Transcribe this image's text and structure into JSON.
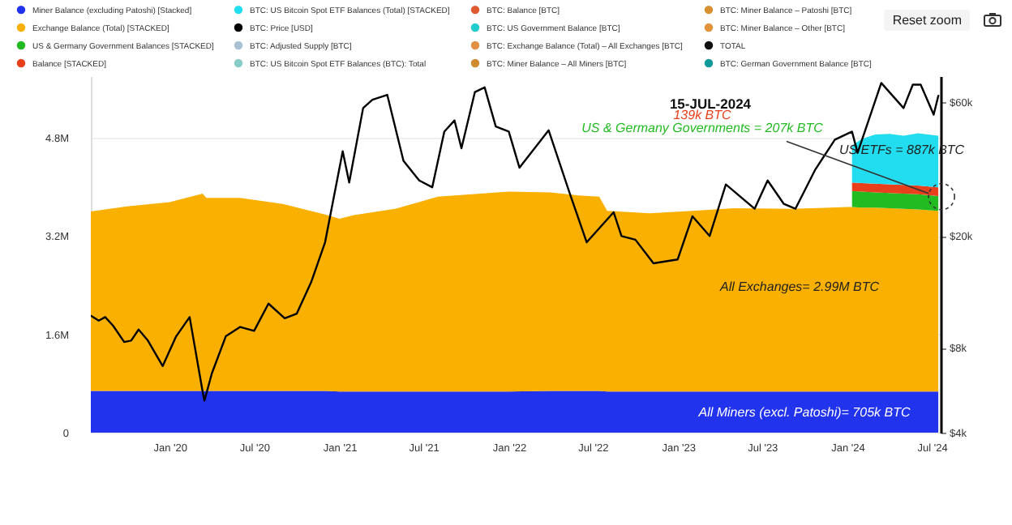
{
  "chart_data": {
    "type": "area",
    "stacked": true,
    "log": "y2",
    "grid": "y",
    "legend": "top",
    "x": [
      "2019-07-15",
      "2019-10-01",
      "2020-01-01",
      "2020-03-12",
      "2020-03-20",
      "2020-06-01",
      "2020-09-01",
      "2020-12-01",
      "2021-01-01",
      "2021-02-01",
      "2021-05-01",
      "2021-08-01",
      "2021-11-01",
      "2022-01-01",
      "2022-04-01",
      "2022-06-01",
      "2022-07-15",
      "2022-08-01",
      "2022-11-01",
      "2023-02-01",
      "2023-05-01",
      "2023-09-01",
      "2024-01-01",
      "2024-01-11",
      "2024-02-01",
      "2024-03-01",
      "2024-04-01",
      "2024-05-01",
      "2024-06-01",
      "2024-07-15"
    ],
    "xlim": [
      "2019-07-15",
      "2024-07-20"
    ],
    "xticks": [
      {
        "value": "2020-01",
        "label": "Jan '20"
      },
      {
        "value": "2020-07",
        "label": "Jul '20"
      },
      {
        "value": "2021-01",
        "label": "Jan '21"
      },
      {
        "value": "2021-07",
        "label": "Jul '21"
      },
      {
        "value": "2022-01",
        "label": "Jan '22"
      },
      {
        "value": "2022-07",
        "label": "Jul '22"
      },
      {
        "value": "2023-01",
        "label": "Jan '23"
      },
      {
        "value": "2023-07",
        "label": "Jul '23"
      },
      {
        "value": "2024-01",
        "label": "Jan '24"
      },
      {
        "value": "2024-07",
        "label": "Jul '24"
      }
    ],
    "ylim": [
      0,
      5800000
    ],
    "yticks": [
      0,
      {
        "value": 1600000,
        "label": "1.6M"
      },
      {
        "value": 3200000,
        "label": "3.2M"
      },
      {
        "value": 4800000,
        "label": "4.8M"
      }
    ],
    "y2lim": [
      4000,
      74000
    ],
    "y2ticks": [
      {
        "value": 4000,
        "label": "$4k"
      },
      {
        "value": 8000,
        "label": "$8k"
      },
      {
        "value": 20000,
        "label": "$20k"
      },
      {
        "value": 60000,
        "label": "$60k"
      }
    ],
    "series": [
      {
        "name": "Miner Balance (excluding Patoshi) [Stacked]",
        "color": "#2233ee",
        "type": "area",
        "values": [
          680000,
          680000,
          680000,
          680000,
          680000,
          680000,
          680000,
          680000,
          670000,
          670000,
          670000,
          670000,
          670000,
          670000,
          680000,
          680000,
          680000,
          670000,
          670000,
          670000,
          670000,
          670000,
          670000,
          670000,
          670000,
          670000,
          670000,
          670000,
          670000,
          670000
        ]
      },
      {
        "name": "Exchange Balance (Total) [STACKED]",
        "color": "#f9b000",
        "type": "area",
        "values": [
          2920000,
          3000000,
          3070000,
          3210000,
          3140000,
          3140000,
          3040000,
          2870000,
          2810000,
          2870000,
          2970000,
          3170000,
          3220000,
          3250000,
          3230000,
          3180000,
          3160000,
          2940000,
          2900000,
          2940000,
          2980000,
          2970000,
          3000000,
          3000000,
          2990000,
          2990000,
          2980000,
          2970000,
          2960000,
          2940000
        ]
      },
      {
        "name": "US & Germany Government Balances [STACKED]",
        "color": "#22bb22",
        "type": "area",
        "values": [
          null,
          null,
          null,
          null,
          null,
          null,
          null,
          null,
          null,
          null,
          null,
          null,
          null,
          null,
          null,
          null,
          null,
          null,
          null,
          null,
          null,
          null,
          null,
          260000,
          260000,
          250000,
          250000,
          250000,
          250000,
          240000
        ]
      },
      {
        "name": "Balance [STACKED]",
        "color": "#e8401c",
        "type": "area",
        "values": [
          null,
          null,
          null,
          null,
          null,
          null,
          null,
          null,
          null,
          null,
          null,
          null,
          null,
          null,
          null,
          null,
          null,
          null,
          null,
          null,
          null,
          null,
          null,
          140000,
          140000,
          140000,
          140000,
          140000,
          140000,
          140000
        ]
      },
      {
        "name": "BTC: US Bitcoin Spot ETF Balances (Total) [STACKED]",
        "color": "#22ddf0",
        "type": "area",
        "values": [
          null,
          null,
          null,
          null,
          null,
          null,
          null,
          null,
          null,
          null,
          null,
          null,
          null,
          null,
          null,
          null,
          null,
          null,
          null,
          null,
          null,
          null,
          null,
          600000,
          720000,
          800000,
          820000,
          800000,
          850000,
          840000
        ]
      },
      {
        "name": "BTC: Price [USD]",
        "color": "#000000",
        "type": "line",
        "axis": "y2",
        "x": [
          "2019-07-16",
          "2019-08-01",
          "2019-08-15",
          "2019-09-01",
          "2019-09-25",
          "2019-10-10",
          "2019-10-26",
          "2019-11-15",
          "2019-12-17",
          "2020-01-15",
          "2020-02-13",
          "2020-03-12",
          "2020-03-16",
          "2020-04-01",
          "2020-05-01",
          "2020-06-01",
          "2020-07-01",
          "2020-08-01",
          "2020-09-05",
          "2020-10-01",
          "2020-11-01",
          "2020-12-01",
          "2021-01-08",
          "2021-01-22",
          "2021-02-21",
          "2021-03-13",
          "2021-04-14",
          "2021-05-19",
          "2021-06-22",
          "2021-07-20",
          "2021-08-15",
          "2021-09-06",
          "2021-09-21",
          "2021-10-20",
          "2021-11-10",
          "2021-12-04",
          "2022-01-01",
          "2022-01-24",
          "2022-03-28",
          "2022-05-12",
          "2022-06-18",
          "2022-08-15",
          "2022-09-01",
          "2022-10-01",
          "2022-11-09",
          "2022-12-31",
          "2023-02-01",
          "2023-03-10",
          "2023-04-14",
          "2023-06-15",
          "2023-07-13",
          "2023-08-17",
          "2023-09-11",
          "2023-10-24",
          "2023-12-05",
          "2024-01-11",
          "2024-01-23",
          "2024-03-14",
          "2024-05-01",
          "2024-05-21",
          "2024-06-07",
          "2024-07-05",
          "2024-07-15"
        ],
        "values": [
          10400,
          10000,
          10300,
          9600,
          8400,
          8500,
          9300,
          8500,
          6900,
          8800,
          10300,
          5600,
          5200,
          6500,
          8800,
          9500,
          9200,
          11500,
          10200,
          10600,
          13700,
          19000,
          40000,
          31000,
          57000,
          61000,
          63500,
          37000,
          31500,
          29800,
          47000,
          51500,
          41000,
          65000,
          67500,
          49000,
          47000,
          35000,
          47500,
          28500,
          19000,
          24300,
          20000,
          19400,
          16000,
          16500,
          23500,
          20000,
          30500,
          25000,
          31500,
          26000,
          25000,
          34500,
          44000,
          47000,
          39500,
          70000,
          57000,
          69000,
          69000,
          54000,
          63000
        ]
      },
      {
        "name": "BTC: Adjusted Supply [BTC]",
        "color": "#a8c0d0",
        "values": [
          null,
          null,
          null,
          null,
          null,
          null,
          null,
          null,
          null,
          null,
          null,
          null,
          null,
          null,
          null,
          null,
          null,
          null,
          null,
          null,
          null,
          null,
          null,
          null,
          null,
          null,
          null,
          null,
          null,
          null
        ]
      },
      {
        "name": "BTC: US Bitcoin Spot ETF Balances (BTC): Total",
        "color": "#88ccc8",
        "values": [
          null,
          null,
          null,
          null,
          null,
          null,
          null,
          null,
          null,
          null,
          null,
          null,
          null,
          null,
          null,
          null,
          null,
          null,
          null,
          null,
          null,
          null,
          null,
          null,
          null,
          null,
          null,
          null,
          null,
          null
        ]
      },
      {
        "name": "BTC: Balance [BTC]",
        "color": "#e05a30",
        "values": [
          null,
          null,
          null,
          null,
          null,
          null,
          null,
          null,
          null,
          null,
          null,
          null,
          null,
          null,
          null,
          null,
          null,
          null,
          null,
          null,
          null,
          null,
          null,
          null,
          null,
          null,
          null,
          null,
          null,
          null
        ]
      },
      {
        "name": "BTC: US Government Balance [BTC]",
        "color": "#22cccc",
        "values": [
          null,
          null,
          null,
          null,
          null,
          null,
          null,
          null,
          null,
          null,
          null,
          null,
          null,
          null,
          null,
          null,
          null,
          null,
          null,
          null,
          null,
          null,
          null,
          null,
          null,
          null,
          null,
          null,
          null,
          null
        ]
      },
      {
        "name": "BTC: Exchange Balance (Total) – All Exchanges [BTC]",
        "color": "#e09040",
        "values": [
          null,
          null,
          null,
          null,
          null,
          null,
          null,
          null,
          null,
          null,
          null,
          null,
          null,
          null,
          null,
          null,
          null,
          null,
          null,
          null,
          null,
          null,
          null,
          null,
          null,
          null,
          null,
          null,
          null,
          null
        ]
      },
      {
        "name": "BTC: Miner Balance – All Miners [BTC]",
        "color": "#d08a30",
        "values": [
          null,
          null,
          null,
          null,
          null,
          null,
          null,
          null,
          null,
          null,
          null,
          null,
          null,
          null,
          null,
          null,
          null,
          null,
          null,
          null,
          null,
          null,
          null,
          null,
          null,
          null,
          null,
          null,
          null,
          null
        ]
      },
      {
        "name": "BTC: Miner Balance – Patoshi [BTC]",
        "color": "#d89030",
        "values": [
          null,
          null,
          null,
          null,
          null,
          null,
          null,
          null,
          null,
          null,
          null,
          null,
          null,
          null,
          null,
          null,
          null,
          null,
          null,
          null,
          null,
          null,
          null,
          null,
          null,
          null,
          null,
          null,
          null,
          null
        ]
      },
      {
        "name": "BTC: Miner Balance – Other [BTC]",
        "color": "#e0953a",
        "values": [
          null,
          null,
          null,
          null,
          null,
          null,
          null,
          null,
          null,
          null,
          null,
          null,
          null,
          null,
          null,
          null,
          null,
          null,
          null,
          null,
          null,
          null,
          null,
          null,
          null,
          null,
          null,
          null,
          null,
          null
        ]
      },
      {
        "name": "TOTAL",
        "color": "#111111",
        "values": [
          null,
          null,
          null,
          null,
          null,
          null,
          null,
          null,
          null,
          null,
          null,
          null,
          null,
          null,
          null,
          null,
          null,
          null,
          null,
          null,
          null,
          null,
          null,
          null,
          null,
          null,
          null,
          null,
          null,
          null
        ]
      },
      {
        "name": "BTC: German Government Balance [BTC]",
        "color": "#119999",
        "values": [
          null,
          null,
          null,
          null,
          null,
          null,
          null,
          null,
          null,
          null,
          null,
          null,
          null,
          null,
          null,
          null,
          null,
          null,
          null,
          null,
          null,
          null,
          null,
          null,
          null,
          null,
          null,
          null,
          null,
          null
        ]
      }
    ],
    "annotations": [
      "15-JUL-2024",
      "139k BTC",
      {
        "text": "US & Germany Governments = 207k BTC",
        "x": "2024-07-15",
        "y": 3840000
      },
      "US ETFs = 887k BTC",
      "All Exchanges= 2.99M BTC",
      "All Miners (excl. Patoshi)= 705k BTC",
      "Reset zoom"
    ]
  }
}
